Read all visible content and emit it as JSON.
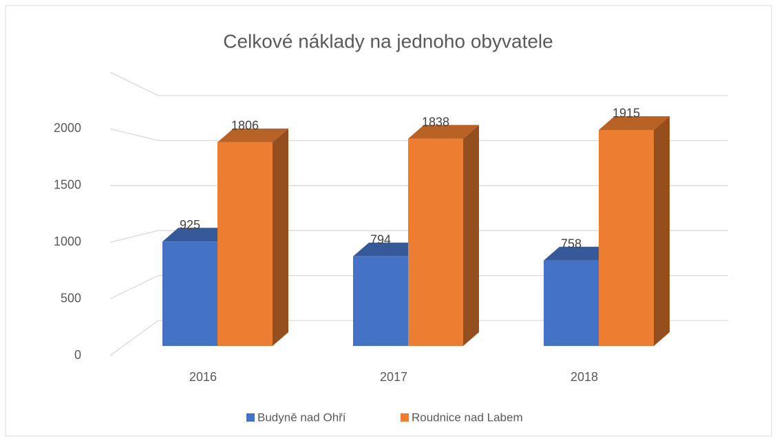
{
  "chart_data": {
    "type": "bar3d",
    "title": "Celkové náklady na jednoho obyvatele",
    "categories": [
      "2016",
      "2017",
      "2018"
    ],
    "series": [
      {
        "name": "Budyně nad Ohří",
        "color": "#4472c4",
        "values": [
          925,
          794,
          758
        ]
      },
      {
        "name": "Roudnice nad Labem",
        "color": "#ed7d31",
        "values": [
          1806,
          1838,
          1915
        ]
      }
    ],
    "ylim": [
      0,
      2500
    ],
    "yticks": [
      0,
      500,
      1000,
      1500,
      2000
    ],
    "grid": true,
    "legend": "bottom"
  }
}
